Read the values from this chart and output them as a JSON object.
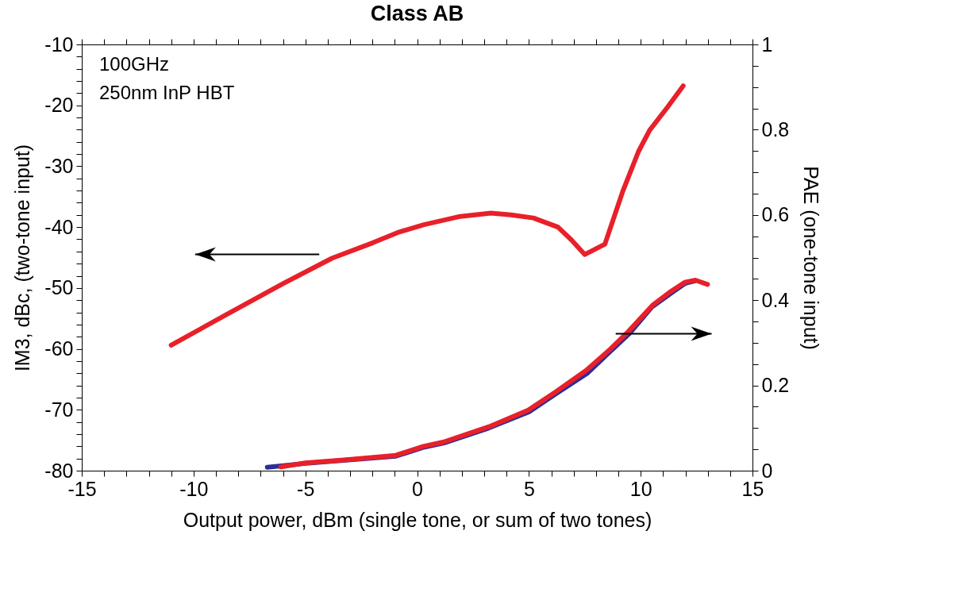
{
  "chart_data": {
    "type": "line",
    "title": "Class AB",
    "xlabel": "Output power, dBm (single tone, or sum of two tones)",
    "ylabel": "IM3, dBc, (two-tone input)",
    "y2label": "PAE (one-tone input)",
    "annotations": [
      "100GHz",
      "250nm InP HBT"
    ],
    "xlim": [
      -15,
      15
    ],
    "ylim": [
      -80,
      -10
    ],
    "y2lim": [
      0,
      1
    ],
    "xticks": [
      -15,
      {
        "value": -14,
        "label": null
      },
      {
        "value": -13,
        "label": null
      },
      {
        "value": -12,
        "label": null
      },
      {
        "value": -11,
        "label": null
      },
      -10,
      {
        "value": -9,
        "label": null
      },
      {
        "value": -8,
        "label": null
      },
      {
        "value": -7,
        "label": null
      },
      {
        "value": -6,
        "label": null
      },
      -5,
      {
        "value": -4,
        "label": null
      },
      {
        "value": -3,
        "label": null
      },
      {
        "value": -2,
        "label": null
      },
      {
        "value": -1,
        "label": null
      },
      0,
      {
        "value": 1,
        "label": null
      },
      {
        "value": 2,
        "label": null
      },
      {
        "value": 3,
        "label": null
      },
      {
        "value": 4,
        "label": null
      },
      5,
      {
        "value": 6,
        "label": null
      },
      {
        "value": 7,
        "label": null
      },
      {
        "value": 8,
        "label": null
      },
      {
        "value": 9,
        "label": null
      },
      10,
      {
        "value": 11,
        "label": null
      },
      {
        "value": 12,
        "label": null
      },
      {
        "value": 13,
        "label": null
      },
      {
        "value": 14,
        "label": null
      },
      15
    ],
    "yticks": [
      -80,
      {
        "value": -78,
        "label": null
      },
      {
        "value": -76,
        "label": null
      },
      {
        "value": -74,
        "label": null
      },
      {
        "value": -72,
        "label": null
      },
      -70,
      {
        "value": -68,
        "label": null
      },
      {
        "value": -66,
        "label": null
      },
      {
        "value": -64,
        "label": null
      },
      {
        "value": -62,
        "label": null
      },
      -60,
      {
        "value": -58,
        "label": null
      },
      {
        "value": -56,
        "label": null
      },
      {
        "value": -54,
        "label": null
      },
      {
        "value": -52,
        "label": null
      },
      -50,
      {
        "value": -48,
        "label": null
      },
      {
        "value": -46,
        "label": null
      },
      {
        "value": -44,
        "label": null
      },
      {
        "value": -42,
        "label": null
      },
      -40,
      {
        "value": -38,
        "label": null
      },
      {
        "value": -36,
        "label": null
      },
      {
        "value": -34,
        "label": null
      },
      {
        "value": -32,
        "label": null
      },
      -30,
      {
        "value": -28,
        "label": null
      },
      {
        "value": -26,
        "label": null
      },
      {
        "value": -24,
        "label": null
      },
      {
        "value": -22,
        "label": null
      },
      -20,
      {
        "value": -18,
        "label": null
      },
      {
        "value": -16,
        "label": null
      },
      {
        "value": -14,
        "label": null
      },
      {
        "value": -12,
        "label": null
      },
      -10
    ],
    "y2ticks": [
      0,
      {
        "value": 0.05,
        "label": null
      },
      {
        "value": 0.1,
        "label": null
      },
      {
        "value": 0.15,
        "label": null
      },
      0.2,
      {
        "value": 0.25,
        "label": null
      },
      {
        "value": 0.3,
        "label": null
      },
      {
        "value": 0.35,
        "label": null
      },
      0.4,
      {
        "value": 0.45,
        "label": null
      },
      {
        "value": 0.5,
        "label": null
      },
      {
        "value": 0.55,
        "label": null
      },
      0.6,
      {
        "value": 0.65,
        "label": null
      },
      {
        "value": 0.7,
        "label": null
      },
      {
        "value": 0.75,
        "label": null
      },
      0.8,
      {
        "value": 0.85,
        "label": null
      },
      {
        "value": 0.9,
        "label": null
      },
      {
        "value": 0.95,
        "label": null
      },
      1
    ],
    "grid": false,
    "series": [
      {
        "color": "#e8202a",
        "x": [
          -11.0,
          -8.5,
          -6.0,
          -3.8,
          -2.0,
          -0.8,
          0.3,
          1.85,
          3.3,
          4.2,
          5.2,
          6.3,
          6.9,
          7.5,
          8.4,
          9.2,
          9.9,
          10.4,
          11.2,
          11.9
        ],
        "values": [
          -59.4,
          -54.3,
          -49.3,
          -45.1,
          -42.6,
          -40.8,
          -39.6,
          -38.3,
          -37.7,
          -38.0,
          -38.5,
          -40.0,
          -42.1,
          -44.5,
          -42.8,
          -34.1,
          -27.6,
          -24.1,
          -20.3,
          -16.8
        ]
      },
      {
        "color": "#2b2f9a",
        "axis": "y2",
        "x": [
          -6.7,
          -5.0,
          -3.3,
          -0.95,
          0.3,
          1.2,
          3.2,
          5.0,
          6.2,
          7.6,
          8.6,
          9.5,
          10.5,
          11.4,
          12.0,
          12.4
        ],
        "values": [
          0.008,
          0.017,
          0.024,
          0.034,
          0.055,
          0.065,
          0.1,
          0.138,
          0.18,
          0.228,
          0.278,
          0.322,
          0.384,
          0.418,
          0.44,
          0.445
        ]
      },
      {
        "color": "#e8202a",
        "axis": "y2",
        "x": [
          -6.1,
          -5.0,
          -3.26,
          -0.95,
          0.28,
          1.17,
          3.21,
          4.97,
          6.2,
          7.56,
          8.64,
          9.46,
          10.55,
          11.36,
          11.97,
          12.45,
          12.99
        ],
        "values": [
          0.009,
          0.018,
          0.025,
          0.036,
          0.057,
          0.067,
          0.103,
          0.142,
          0.185,
          0.235,
          0.285,
          0.327,
          0.389,
          0.421,
          0.442,
          0.447,
          0.437
        ]
      }
    ]
  }
}
